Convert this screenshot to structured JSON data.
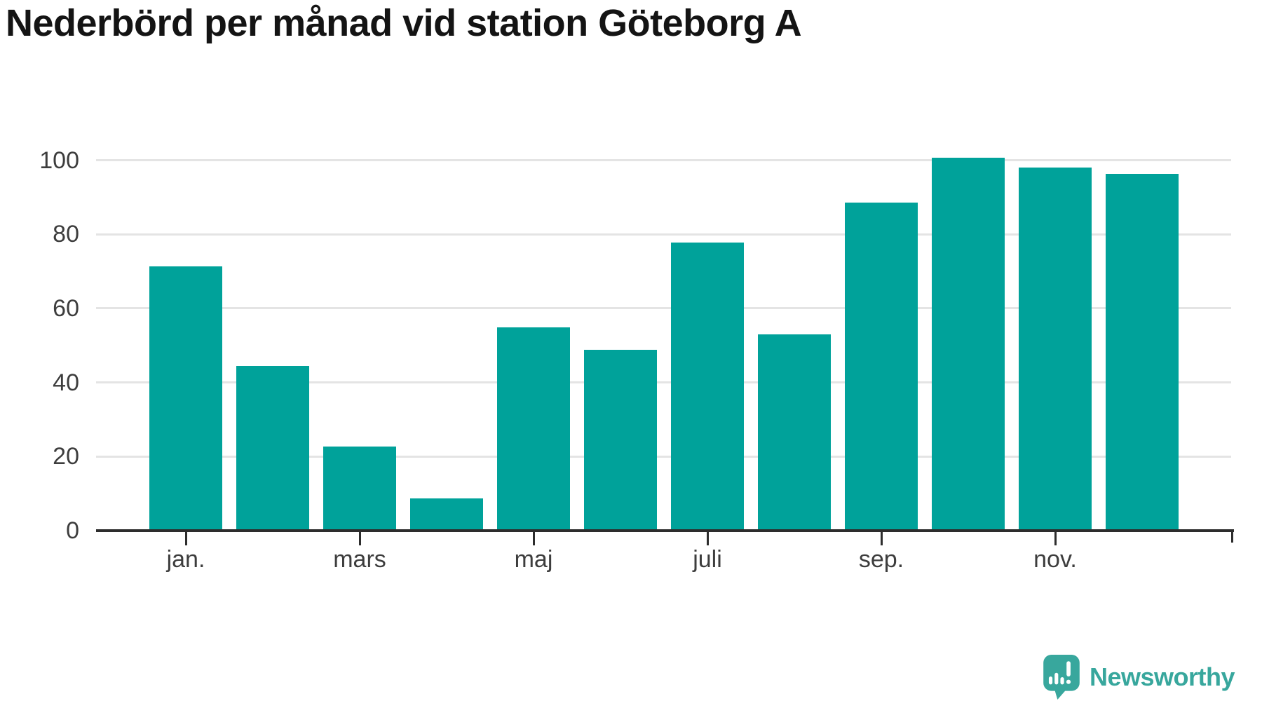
{
  "title": "Nederbörd per månad vid station Göteborg A",
  "chart_data": {
    "type": "bar",
    "title": "Nederbörd per månad vid station Göteborg A",
    "months_count": 12,
    "values": [
      71.3,
      44.4,
      22.8,
      8.7,
      54.9,
      48.8,
      77.8,
      52.9,
      88.5,
      100.6,
      98.1,
      96.3
    ],
    "x_tick_labels": [
      "jan.",
      "mars",
      "maj",
      "juli",
      "sep.",
      "nov."
    ],
    "x_tick_month_indexes": [
      1,
      3,
      5,
      7,
      9,
      11
    ],
    "y_tick_labels": [
      "0",
      "20",
      "40",
      "60",
      "80",
      "100"
    ],
    "y_tick_values": [
      0,
      20,
      40,
      60,
      80,
      100
    ],
    "ylim": [
      0,
      105
    ],
    "grid": "horizontal",
    "legend": "none"
  },
  "branding": {
    "logo_text": "Newsworthy"
  },
  "colors": {
    "bar": "#00a29a",
    "grid": "#e4e4e4",
    "axis": "#2d2d2d",
    "tick_text": "#3d3d3d",
    "title_text": "#141414",
    "brand": "#38a79d",
    "background": "#ffffff"
  }
}
